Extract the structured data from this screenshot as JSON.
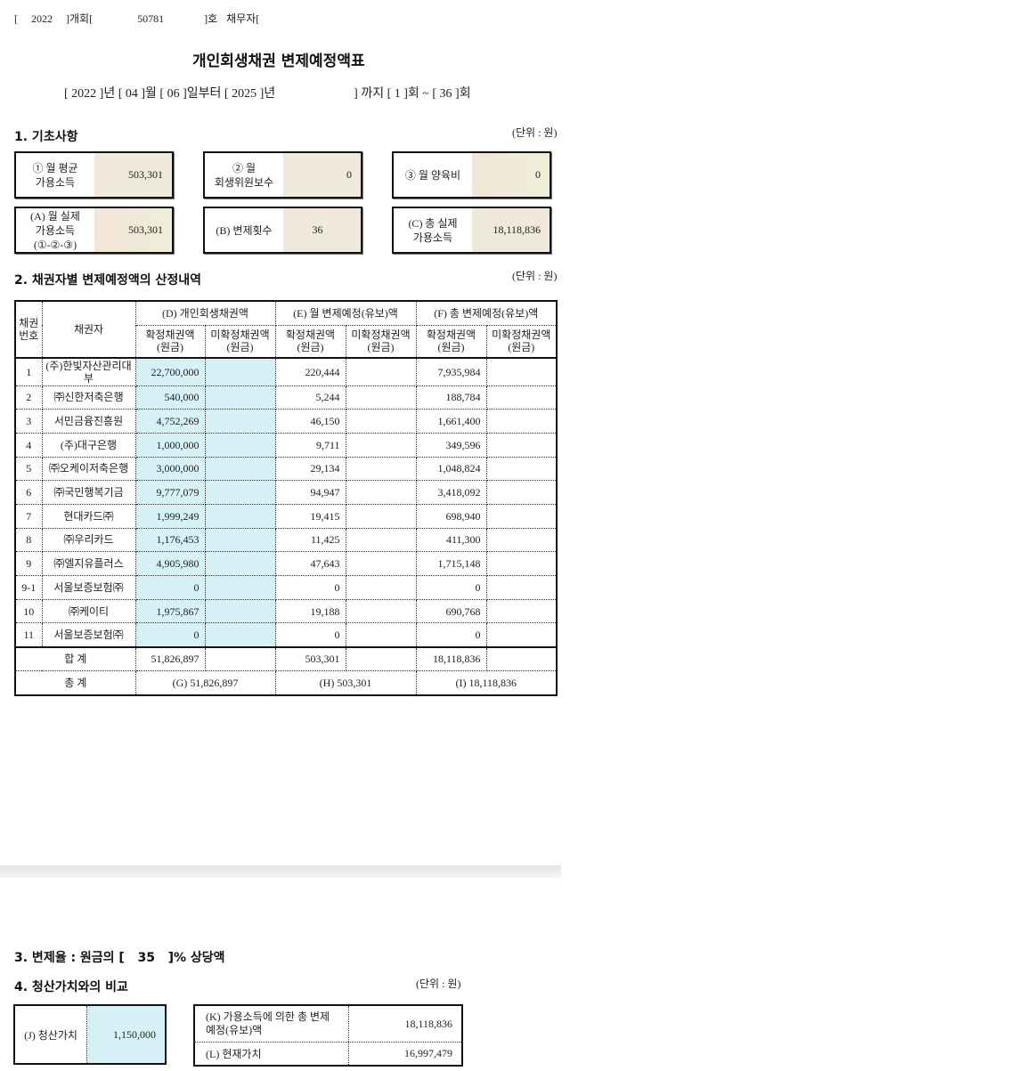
{
  "header": {
    "year": "2022",
    "case_type": "개회",
    "case_no": "50781",
    "ho": "호",
    "debtor_label": "채무자"
  },
  "title": "개인회생채권 변제예정액표",
  "period": {
    "start_year": "2022",
    "start_month": "04",
    "start_day": "06",
    "end_year": "2025",
    "text_from": "일부터",
    "until": "까지",
    "from_round": "1",
    "to_round": "36"
  },
  "section1": {
    "heading": "1. 기초사항",
    "unit": "(단위 : 원)",
    "boxes": [
      {
        "label": "① 월 평균\n가용소득",
        "value": "503,301"
      },
      {
        "label": "② 월\n회생위원보수",
        "value": "0"
      },
      {
        "label": "③ 월 양육비",
        "value": "0"
      },
      {
        "label": "(A) 월 실제\n가용소득\n(①-②-③)",
        "value": "503,301"
      },
      {
        "label": "(B) 변제횟수",
        "value": "36"
      },
      {
        "label": "(C) 총 실제\n가용소득",
        "value": "18,118,836"
      }
    ]
  },
  "section2": {
    "heading": "2. 채권자별 변제예정액의 산정내역",
    "unit": "(단위 : 원)",
    "headers": {
      "no": "채권\n번호",
      "creditor": "채권자",
      "d": "(D) 개인회생채권액",
      "e": "(E) 월 변제예정(유보)액",
      "f": "(F) 총 변제예정(유보)액",
      "confirmed": "확정채권액\n(원금)",
      "unconfirmed": "미확정채권액\n(원금)"
    },
    "rows": [
      [
        "1",
        "(주)한빛자산관리대부",
        "22,700,000",
        "",
        "220,444",
        "",
        "7,935,984",
        ""
      ],
      [
        "2",
        "㈜신한저축은행",
        "540,000",
        "",
        "5,244",
        "",
        "188,784",
        ""
      ],
      [
        "3",
        "서민금융진흥원",
        "4,752,269",
        "",
        "46,150",
        "",
        "1,661,400",
        ""
      ],
      [
        "4",
        "(주)대구은행",
        "1,000,000",
        "",
        "9,711",
        "",
        "349,596",
        ""
      ],
      [
        "5",
        "㈜오케이저축은행",
        "3,000,000",
        "",
        "29,134",
        "",
        "1,048,824",
        ""
      ],
      [
        "6",
        "㈜국민행복기금",
        "9,777,079",
        "",
        "94,947",
        "",
        "3,418,092",
        ""
      ],
      [
        "7",
        "현대카드㈜",
        "1,999,249",
        "",
        "19,415",
        "",
        "698,940",
        ""
      ],
      [
        "8",
        "㈜우리카드",
        "1,176,453",
        "",
        "11,425",
        "",
        "411,300",
        ""
      ],
      [
        "9",
        "㈜엘지유플러스",
        "4,905,980",
        "",
        "47,643",
        "",
        "1,715,148",
        ""
      ],
      [
        "9-1",
        "서울보증보험㈜",
        "0",
        "",
        "0",
        "",
        "0",
        ""
      ],
      [
        "10",
        "㈜케이티",
        "1,975,867",
        "",
        "19,188",
        "",
        "690,768",
        ""
      ],
      [
        "11",
        "서울보증보험㈜",
        "0",
        "",
        "0",
        "",
        "0",
        ""
      ]
    ],
    "sum": {
      "label": "합 계",
      "d": "51,826,897",
      "e": "503,301",
      "f": "18,118,836"
    },
    "total": {
      "label": "총 계",
      "g": "(G) 51,826,897",
      "h": "(H) 503,301",
      "i": "(I) 18,118,836"
    }
  },
  "section3": {
    "heading_pre": "3. 변제율 : 원금의 [",
    "rate": "35",
    "heading_post": "]% 상당액"
  },
  "section4": {
    "heading": "4. 청산가치와의 비교",
    "unit": "(단위 : 원)",
    "j_label": "(J) 청산가치",
    "j_value": "1,150,000",
    "k_label": "(K) 가용소득에 의한 총 변제\n예정(유보)액",
    "k_value": "18,118,836",
    "l_label": "(L) 현재가치",
    "l_value": "16,997,479"
  },
  "colors": {
    "cyan_cell": "#d6f2f6",
    "beige_cell": "#efe9dc"
  }
}
